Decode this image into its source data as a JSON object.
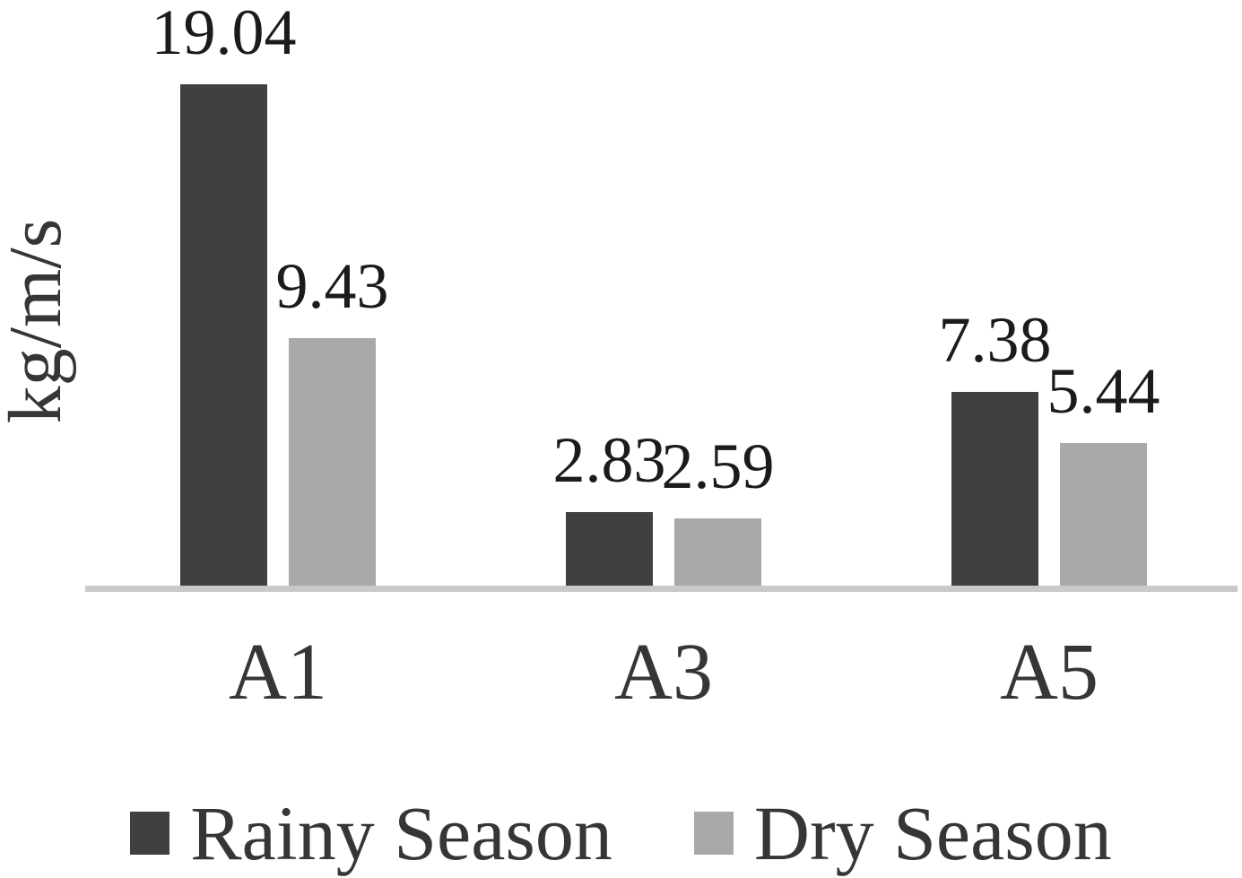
{
  "chart_data": {
    "type": "bar",
    "title": "",
    "xlabel": "",
    "ylabel": "kg/m/s",
    "categories": [
      "A1",
      "A3",
      "A5"
    ],
    "series": [
      {
        "name": "Rainy Season",
        "color": "#404040",
        "values": [
          19.04,
          2.83,
          7.38
        ],
        "labels": [
          "19.04",
          "2.83",
          "7.38"
        ]
      },
      {
        "name": "Dry Season",
        "color": "#a9a9a9",
        "values": [
          9.43,
          2.59,
          5.44
        ],
        "labels": [
          "9.43",
          "2.59",
          "5.44"
        ]
      }
    ],
    "ylim": [
      0,
      20
    ],
    "grid": false,
    "y_axis_ticks_visible": false,
    "legend_position": "bottom",
    "axis_line_color": "#c9c9c9",
    "value_label_color": "#1b1b1b",
    "text_color": "#363636"
  }
}
